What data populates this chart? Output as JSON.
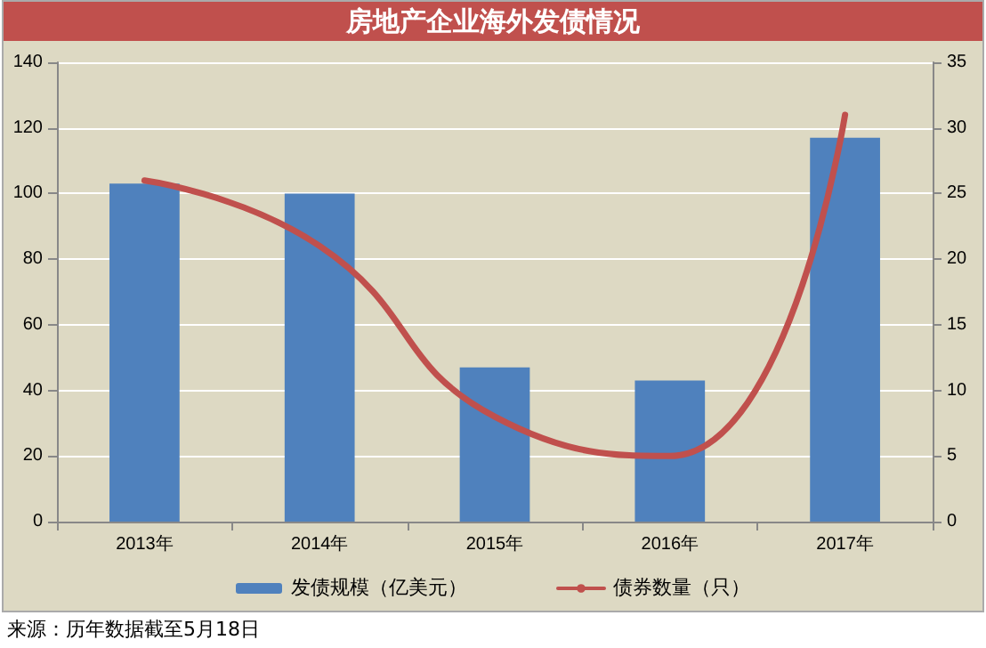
{
  "chart_data": {
    "type": "bar",
    "title": "房地产企业海外发债情况",
    "categories": [
      "2013年",
      "2014年",
      "2015年",
      "2016年",
      "2017年"
    ],
    "series": [
      {
        "name": "发债规模（亿美元）",
        "color": "#4f81bd",
        "values": [
          103,
          100,
          47,
          43,
          117
        ]
      },
      {
        "name": "债券数量（只）",
        "color": "#c0504d",
        "type": "line",
        "axis": "y2",
        "values": [
          26,
          21,
          8,
          5,
          31
        ]
      }
    ],
    "ylim": [
      0,
      140
    ],
    "yticks": [
      0,
      20,
      40,
      60,
      80,
      100,
      120,
      140
    ],
    "y2lim": [
      0,
      35
    ],
    "y2ticks": [
      0,
      5,
      10,
      15,
      20,
      25,
      30,
      35
    ],
    "grid": "y",
    "legend": "bottom",
    "marker": "none",
    "line_style": "solid",
    "annotations": [
      "来源：历年数据截至5月18日"
    ]
  }
}
